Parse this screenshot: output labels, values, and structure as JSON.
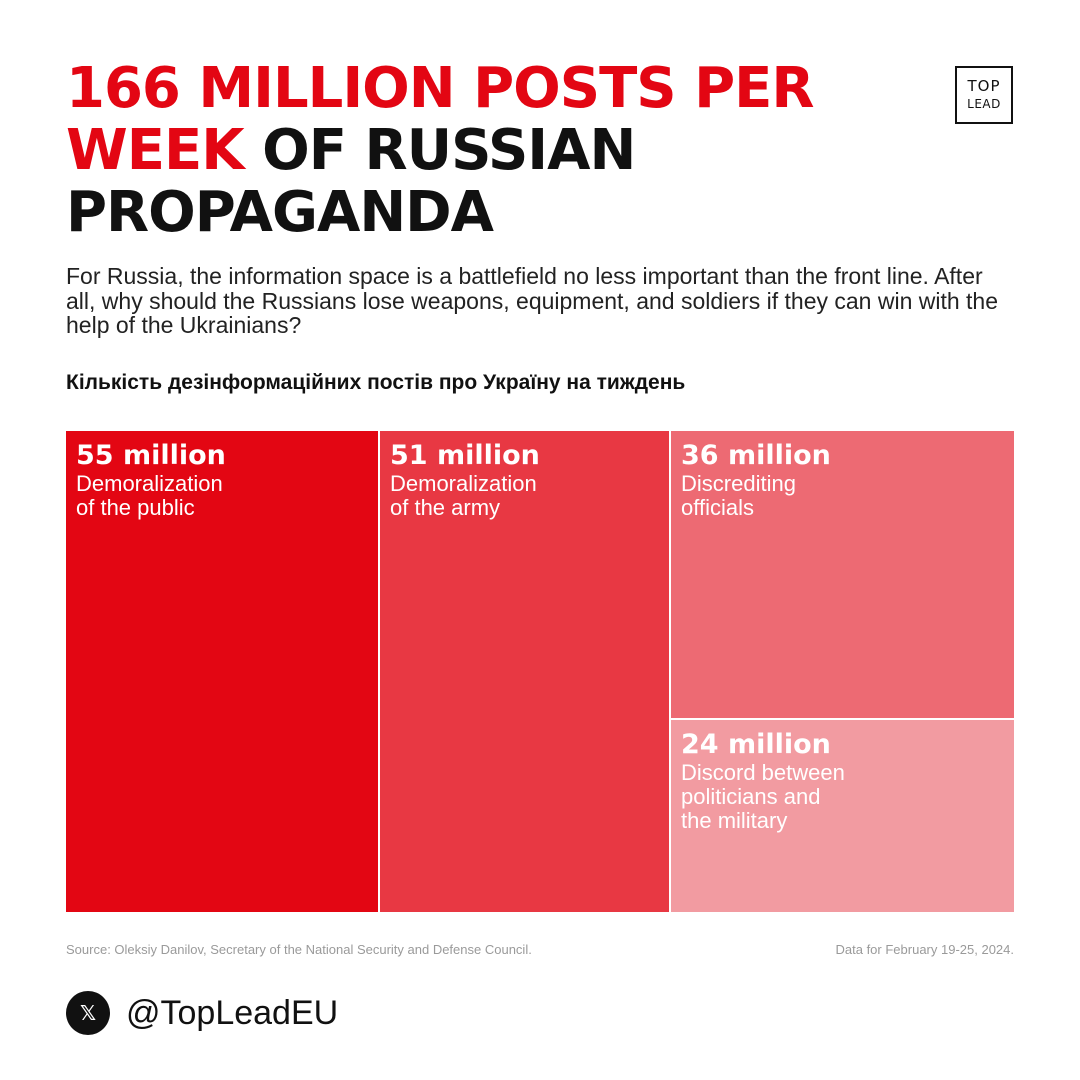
{
  "header": {
    "title_highlight": "166 MILLION POSTS PER WEEK",
    "title_rest": "OF RUSSIAN PROPAGANDA",
    "logo_line1": "TOP",
    "logo_line2": "LEAD"
  },
  "intro": "For Russia, the information space is a battlefield no less important than the front line. After all, why should the Russians lose weapons, equipment, and soldiers if they can win with the help of the Ukrainians?",
  "chart_data": {
    "type": "treemap",
    "title": "Кількість дезінформаційних постів про Україну на тиждень",
    "unit": "million posts per week",
    "items": [
      {
        "value_label": "55 million",
        "value": 55,
        "label": "Demoralization\nof the public",
        "color": "#e30613"
      },
      {
        "value_label": "51 million",
        "value": 51,
        "label": "Demoralization\nof the army",
        "color": "#e83843"
      },
      {
        "value_label": "36 million",
        "value": 36,
        "label": "Discrediting\nofficials",
        "color": "#ed6a73"
      },
      {
        "value_label": "24 million",
        "value": 24,
        "label": "Discord between\npoliticians and\nthe military",
        "color": "#f29ba1"
      }
    ]
  },
  "footer": {
    "source": "Source: Oleksiy Danilov, Secretary of the National Security and Defense Council.",
    "period": "Data for February 19-25, 2024.",
    "x_icon": "x-logo-icon",
    "handle": "@TopLeadEU"
  }
}
